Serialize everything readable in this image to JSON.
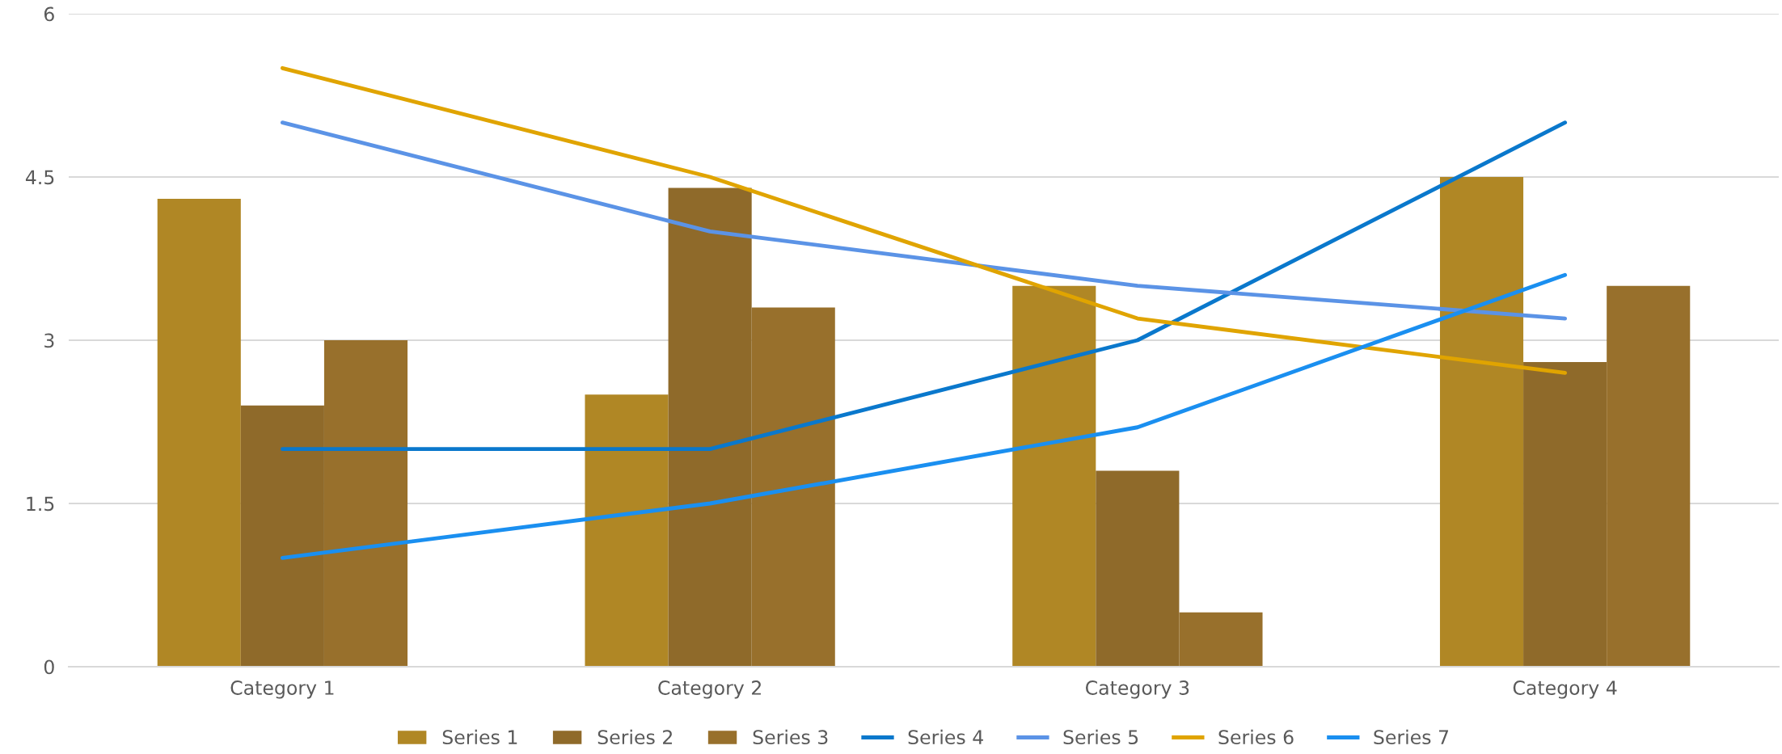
{
  "chart_data": {
    "type": "bar",
    "categories": [
      "Category 1",
      "Category 2",
      "Category 3",
      "Category 4"
    ],
    "series": [
      {
        "name": "Series 1",
        "color": "#b08725",
        "values": [
          4.3,
          2.5,
          3.5,
          4.5
        ]
      },
      {
        "name": "Series 2",
        "color": "#8f6a2a",
        "values": [
          2.4,
          4.4,
          1.8,
          2.8
        ]
      },
      {
        "name": "Series 3",
        "color": "#98702c",
        "values": [
          3.0,
          3.3,
          0.5,
          3.5
        ]
      },
      {
        "name": "Series 4",
        "type": "line",
        "color": "#0a78cc",
        "values": [
          2,
          2,
          3,
          5
        ]
      },
      {
        "name": "Series 5",
        "type": "line",
        "color": "#5b93e6",
        "values": [
          5,
          4,
          3.5,
          3.2
        ]
      },
      {
        "name": "Series 6",
        "type": "line",
        "color": "#e0a400",
        "values": [
          5.5,
          4.5,
          3.2,
          2.7
        ]
      },
      {
        "name": "Series 7",
        "type": "line",
        "color": "#1a8ff0",
        "values": [
          1,
          1.5,
          2.2,
          3.6
        ]
      }
    ],
    "ylim": [
      0,
      6
    ],
    "yticks": [
      0,
      1.5,
      3,
      4.5,
      6
    ],
    "grid": "y",
    "legend": "bottom"
  }
}
